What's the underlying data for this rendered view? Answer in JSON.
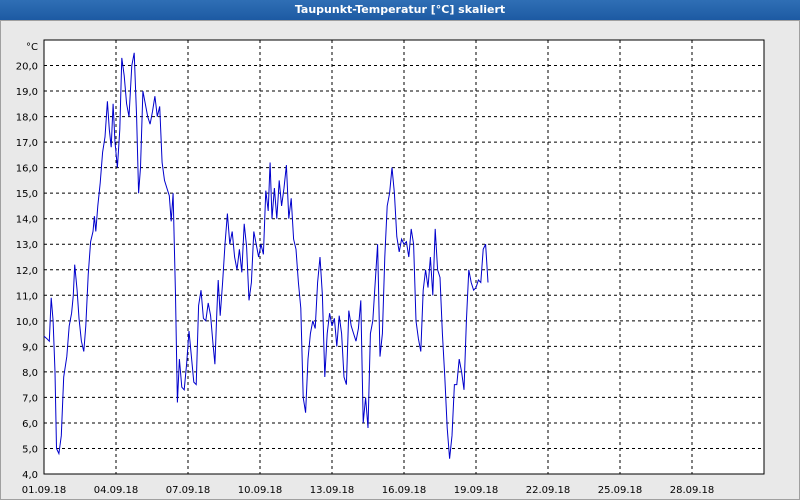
{
  "window": {
    "title": "Taupunkt-Temperatur [°C] skaliert"
  },
  "chart_data": {
    "type": "line",
    "title": "Taupunkt-Temperatur [°C] skaliert",
    "ylabel": "°C",
    "xlabel": "",
    "ylim": [
      4.0,
      21.0
    ],
    "xlim": [
      "01.09.18",
      "30.09.18"
    ],
    "y_ticks": [
      "4,0",
      "5,0",
      "6,0",
      "7,0",
      "8,0",
      "9,0",
      "10,0",
      "11,0",
      "12,0",
      "13,0",
      "14,0",
      "15,0",
      "16,0",
      "17,0",
      "18,0",
      "19,0",
      "20,0"
    ],
    "x_ticks": [
      "01.09.18",
      "04.09.18",
      "07.09.18",
      "10.09.18",
      "13.09.18",
      "16.09.18",
      "19.09.18",
      "22.09.18",
      "25.09.18",
      "28.09.18"
    ],
    "grid": true,
    "line_color": "#0000cc",
    "series": [
      {
        "x_unit": "days since 01.09.18",
        "points": [
          [
            0.0,
            9.4
          ],
          [
            0.12,
            9.3
          ],
          [
            0.22,
            9.2
          ],
          [
            0.3,
            10.9
          ],
          [
            0.38,
            10.0
          ],
          [
            0.46,
            8.0
          ],
          [
            0.52,
            5.0
          ],
          [
            0.62,
            4.8
          ],
          [
            0.72,
            5.5
          ],
          [
            0.82,
            7.8
          ],
          [
            0.95,
            8.6
          ],
          [
            1.05,
            9.8
          ],
          [
            1.15,
            10.3
          ],
          [
            1.22,
            11.0
          ],
          [
            1.28,
            12.2
          ],
          [
            1.38,
            11.2
          ],
          [
            1.46,
            10.1
          ],
          [
            1.56,
            9.2
          ],
          [
            1.66,
            8.8
          ],
          [
            1.74,
            9.8
          ],
          [
            1.84,
            11.8
          ],
          [
            1.94,
            13.1
          ],
          [
            2.04,
            13.5
          ],
          [
            2.1,
            14.1
          ],
          [
            2.16,
            13.5
          ],
          [
            2.24,
            14.5
          ],
          [
            2.34,
            15.4
          ],
          [
            2.44,
            16.6
          ],
          [
            2.54,
            17.2
          ],
          [
            2.64,
            18.6
          ],
          [
            2.72,
            17.5
          ],
          [
            2.8,
            16.8
          ],
          [
            2.88,
            18.5
          ],
          [
            2.96,
            17.0
          ],
          [
            3.06,
            16.0
          ],
          [
            3.16,
            17.5
          ],
          [
            3.24,
            20.3
          ],
          [
            3.34,
            19.6
          ],
          [
            3.44,
            18.5
          ],
          [
            3.54,
            18.0
          ],
          [
            3.66,
            20.0
          ],
          [
            3.76,
            20.5
          ],
          [
            3.86,
            18.0
          ],
          [
            3.94,
            15.0
          ],
          [
            4.02,
            16.0
          ],
          [
            4.12,
            19.0
          ],
          [
            4.22,
            18.5
          ],
          [
            4.32,
            18.0
          ],
          [
            4.42,
            17.7
          ],
          [
            4.52,
            18.2
          ],
          [
            4.62,
            18.8
          ],
          [
            4.72,
            18.0
          ],
          [
            4.82,
            18.4
          ],
          [
            4.92,
            16.2
          ],
          [
            5.02,
            15.5
          ],
          [
            5.12,
            15.2
          ],
          [
            5.22,
            14.9
          ],
          [
            5.3,
            13.9
          ],
          [
            5.38,
            15.0
          ],
          [
            5.48,
            11.0
          ],
          [
            5.56,
            6.8
          ],
          [
            5.64,
            8.5
          ],
          [
            5.74,
            7.4
          ],
          [
            5.84,
            7.3
          ],
          [
            5.94,
            8.3
          ],
          [
            6.04,
            9.6
          ],
          [
            6.14,
            8.6
          ],
          [
            6.24,
            7.6
          ],
          [
            6.34,
            7.5
          ],
          [
            6.44,
            10.6
          ],
          [
            6.54,
            11.2
          ],
          [
            6.64,
            10.1
          ],
          [
            6.74,
            10.0
          ],
          [
            6.84,
            10.7
          ],
          [
            6.94,
            10.2
          ],
          [
            7.04,
            9.1
          ],
          [
            7.12,
            8.3
          ],
          [
            7.2,
            10.3
          ],
          [
            7.26,
            11.6
          ],
          [
            7.34,
            10.2
          ],
          [
            7.44,
            11.5
          ],
          [
            7.54,
            13.0
          ],
          [
            7.64,
            14.2
          ],
          [
            7.74,
            13.0
          ],
          [
            7.84,
            13.5
          ],
          [
            7.94,
            12.5
          ],
          [
            8.04,
            12.0
          ],
          [
            8.14,
            12.8
          ],
          [
            8.24,
            11.9
          ],
          [
            8.34,
            13.8
          ],
          [
            8.44,
            12.9
          ],
          [
            8.54,
            10.8
          ],
          [
            8.64,
            11.5
          ],
          [
            8.74,
            13.5
          ],
          [
            8.84,
            13.0
          ],
          [
            8.94,
            12.5
          ],
          [
            9.04,
            13.0
          ],
          [
            9.14,
            12.6
          ],
          [
            9.24,
            15.1
          ],
          [
            9.34,
            14.3
          ],
          [
            9.42,
            16.2
          ],
          [
            9.5,
            14.0
          ],
          [
            9.6,
            15.2
          ],
          [
            9.7,
            14.0
          ],
          [
            9.8,
            15.5
          ],
          [
            9.9,
            14.5
          ],
          [
            10.0,
            15.2
          ],
          [
            10.1,
            16.1
          ],
          [
            10.2,
            14.0
          ],
          [
            10.3,
            14.8
          ],
          [
            10.4,
            13.2
          ],
          [
            10.5,
            12.8
          ],
          [
            10.6,
            11.5
          ],
          [
            10.7,
            10.5
          ],
          [
            10.8,
            7.0
          ],
          [
            10.9,
            6.4
          ],
          [
            11.0,
            8.5
          ],
          [
            11.1,
            9.5
          ],
          [
            11.2,
            10.0
          ],
          [
            11.3,
            9.7
          ],
          [
            11.4,
            11.5
          ],
          [
            11.5,
            12.5
          ],
          [
            11.6,
            11.0
          ],
          [
            11.7,
            7.8
          ],
          [
            11.8,
            9.5
          ],
          [
            11.9,
            10.3
          ],
          [
            12.0,
            9.8
          ],
          [
            12.1,
            10.1
          ],
          [
            12.2,
            9.0
          ],
          [
            12.3,
            10.2
          ],
          [
            12.4,
            9.5
          ],
          [
            12.5,
            7.8
          ],
          [
            12.6,
            7.5
          ],
          [
            12.7,
            10.4
          ],
          [
            12.8,
            9.8
          ],
          [
            12.9,
            9.5
          ],
          [
            13.0,
            9.2
          ],
          [
            13.1,
            9.7
          ],
          [
            13.2,
            10.8
          ],
          [
            13.3,
            6.0
          ],
          [
            13.4,
            7.0
          ],
          [
            13.5,
            5.8
          ],
          [
            13.6,
            9.5
          ],
          [
            13.7,
            10.0
          ],
          [
            13.8,
            11.5
          ],
          [
            13.9,
            13.0
          ],
          [
            14.0,
            8.6
          ],
          [
            14.1,
            9.5
          ],
          [
            14.2,
            12.5
          ],
          [
            14.3,
            14.5
          ],
          [
            14.4,
            15.0
          ],
          [
            14.5,
            16.0
          ],
          [
            14.6,
            15.0
          ],
          [
            14.7,
            13.3
          ],
          [
            14.8,
            12.7
          ],
          [
            14.9,
            13.2
          ],
          [
            15.0,
            13.0
          ],
          [
            15.1,
            13.1
          ],
          [
            15.2,
            12.5
          ],
          [
            15.3,
            13.6
          ],
          [
            15.4,
            13.0
          ],
          [
            15.5,
            10.0
          ],
          [
            15.6,
            9.3
          ],
          [
            15.7,
            8.8
          ],
          [
            15.8,
            11.2
          ],
          [
            15.9,
            12.0
          ],
          [
            16.0,
            11.3
          ],
          [
            16.1,
            12.5
          ],
          [
            16.2,
            11.0
          ],
          [
            16.3,
            13.6
          ],
          [
            16.4,
            12.0
          ],
          [
            16.5,
            11.7
          ],
          [
            16.6,
            9.5
          ],
          [
            16.7,
            7.8
          ],
          [
            16.8,
            5.8
          ],
          [
            16.9,
            4.6
          ],
          [
            17.0,
            5.5
          ],
          [
            17.1,
            7.5
          ],
          [
            17.2,
            7.5
          ],
          [
            17.3,
            8.5
          ],
          [
            17.4,
            8.0
          ],
          [
            17.5,
            7.3
          ],
          [
            17.6,
            10.0
          ],
          [
            17.7,
            12.0
          ],
          [
            17.8,
            11.5
          ],
          [
            17.9,
            11.2
          ],
          [
            18.0,
            11.3
          ],
          [
            18.1,
            11.6
          ],
          [
            18.2,
            11.5
          ],
          [
            18.3,
            12.8
          ],
          [
            18.4,
            13.0
          ],
          [
            18.5,
            11.5
          ]
        ]
      }
    ]
  }
}
